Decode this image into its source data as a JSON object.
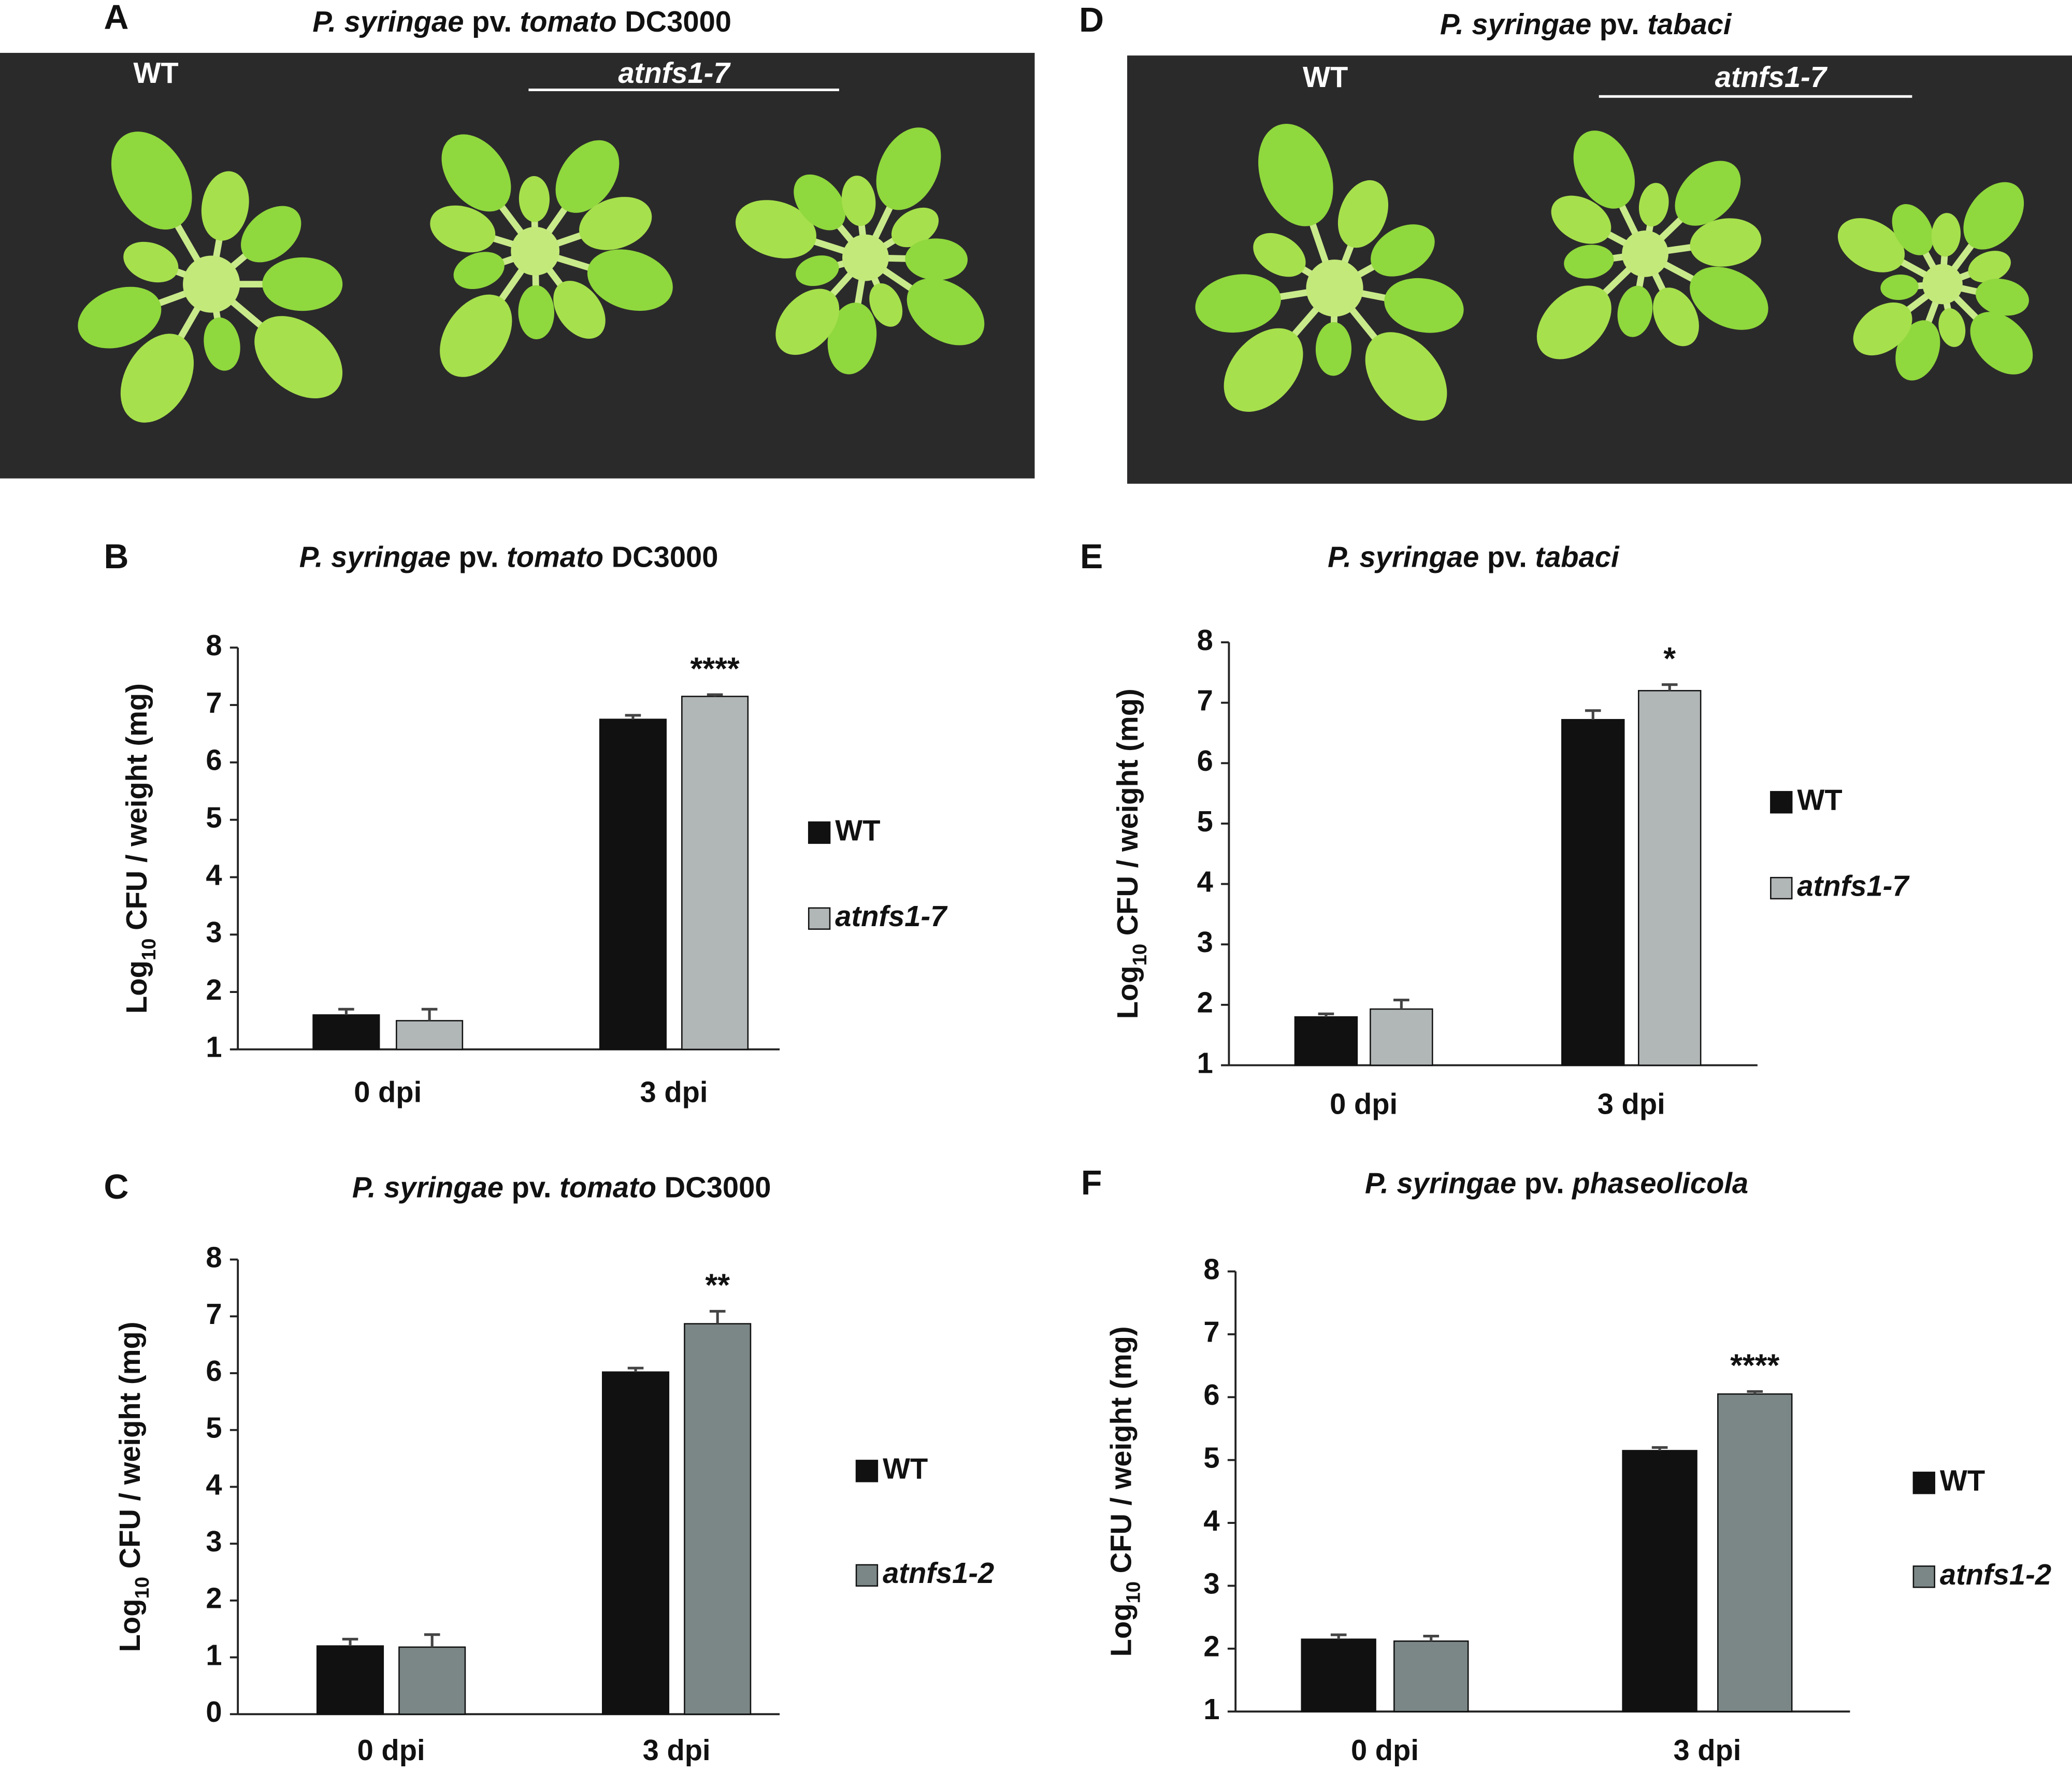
{
  "photos": [
    {
      "label": "A",
      "title": "P. syringae pv. tomato DC3000",
      "wt": "WT",
      "mutant": "atnfs1-7"
    },
    {
      "label": "D",
      "title": "P. syringae pv. tabaci",
      "wt": "WT",
      "mutant": "atnfs1-7"
    }
  ],
  "chart_data": [
    {
      "type": "bar",
      "panel": "B",
      "title": "P. syringae pv. tomato DC3000",
      "ylabel": "Log10 CFU / weight (mg)",
      "categories": [
        "0 dpi",
        "3 dpi"
      ],
      "ylim": [
        1,
        8
      ],
      "yticks": [
        1,
        2,
        3,
        4,
        5,
        6,
        7,
        8
      ],
      "annotation": "****",
      "series": [
        {
          "name": "WT",
          "color": "#111111",
          "values": [
            1.6,
            6.75
          ],
          "errors": [
            0.1,
            0.07
          ]
        },
        {
          "name": "atnfs1-7",
          "color": "#b1b6b6",
          "values": [
            1.5,
            7.15
          ],
          "errors": [
            0.2,
            0.03
          ]
        }
      ]
    },
    {
      "type": "bar",
      "panel": "C",
      "title": "P. syringae pv. tomato DC3000",
      "ylabel": "Log10 CFU / weight (mg)",
      "categories": [
        "0 dpi",
        "3 dpi"
      ],
      "ylim": [
        0,
        8
      ],
      "yticks": [
        0,
        1,
        2,
        3,
        4,
        5,
        6,
        7,
        8
      ],
      "annotation": "**",
      "series": [
        {
          "name": "WT",
          "color": "#111111",
          "values": [
            1.2,
            6.02
          ],
          "errors": [
            0.12,
            0.07
          ]
        },
        {
          "name": "atnfs1-2",
          "color": "#7b8686",
          "values": [
            1.18,
            6.87
          ],
          "errors": [
            0.22,
            0.22
          ]
        }
      ]
    },
    {
      "type": "bar",
      "panel": "E",
      "title": "P. syringae pv. tabaci",
      "ylabel": "Log10 CFU / weight (mg)",
      "categories": [
        "0 dpi",
        "3 dpi"
      ],
      "ylim": [
        1,
        8
      ],
      "yticks": [
        1,
        2,
        3,
        4,
        5,
        6,
        7,
        8
      ],
      "annotation": "*",
      "series": [
        {
          "name": "WT",
          "color": "#111111",
          "values": [
            1.8,
            6.72
          ],
          "errors": [
            0.05,
            0.15
          ]
        },
        {
          "name": "atnfs1-7",
          "color": "#b1b6b6",
          "values": [
            1.93,
            7.2
          ],
          "errors": [
            0.15,
            0.1
          ]
        }
      ]
    },
    {
      "type": "bar",
      "panel": "F",
      "title": "P. syringae pv. phaseolicola",
      "ylabel": "Log10 CFU / weight (mg)",
      "categories": [
        "0 dpi",
        "3 dpi"
      ],
      "ylim": [
        1,
        8
      ],
      "yticks": [
        1,
        2,
        3,
        4,
        5,
        6,
        7,
        8
      ],
      "annotation": "****",
      "series": [
        {
          "name": "WT",
          "color": "#111111",
          "values": [
            2.15,
            5.15
          ],
          "errors": [
            0.07,
            0.05
          ]
        },
        {
          "name": "atnfs1-2",
          "color": "#7b8686",
          "values": [
            2.12,
            6.05
          ],
          "errors": [
            0.08,
            0.04
          ]
        }
      ]
    }
  ]
}
